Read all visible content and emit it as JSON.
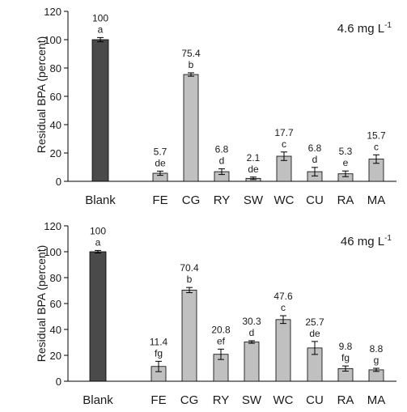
{
  "chart_data": [
    {
      "type": "bar",
      "title": "",
      "concentration_label": "4.6 mg L",
      "concentration_exponent": "-1",
      "ylabel": "Residual BPA (percent)",
      "xlabel": "",
      "ylim": [
        0,
        120
      ],
      "yticks": [
        0,
        20,
        40,
        60,
        80,
        100,
        120
      ],
      "grid": false,
      "categories": [
        "Blank",
        "FE",
        "CG",
        "RY",
        "SW",
        "WC",
        "CU",
        "RA",
        "MA"
      ],
      "values": [
        100,
        5.7,
        75.4,
        6.8,
        2.1,
        17.7,
        6.8,
        5.3,
        15.7
      ],
      "value_labels": [
        "100",
        "5.7",
        "75.4",
        "6.8",
        "2.1",
        "17.7",
        "6.8",
        "5.3",
        "15.7"
      ],
      "errors": [
        1.5,
        1.5,
        1.2,
        2.0,
        0.9,
        3.0,
        3.0,
        2.0,
        3.0
      ],
      "letters": [
        "a",
        "de",
        "b",
        "d",
        "de",
        "c",
        "d",
        "e",
        "c"
      ],
      "bar_colors": [
        "#4a4a4a",
        "#c0c0c0",
        "#c0c0c0",
        "#c0c0c0",
        "#c0c0c0",
        "#c0c0c0",
        "#c0c0c0",
        "#c0c0c0",
        "#c0c0c0"
      ]
    },
    {
      "type": "bar",
      "title": "",
      "concentration_label": "46 mg L",
      "concentration_exponent": "-1",
      "ylabel": "Residual BPA (percent)",
      "xlabel": "",
      "ylim": [
        0,
        120
      ],
      "yticks": [
        0,
        20,
        40,
        60,
        80,
        100,
        120
      ],
      "grid": false,
      "categories": [
        "Blank",
        "FE",
        "CG",
        "RY",
        "SW",
        "WC",
        "CU",
        "RA",
        "MA"
      ],
      "values": [
        100,
        11.4,
        70.4,
        20.8,
        30.3,
        47.6,
        25.7,
        9.8,
        8.8
      ],
      "value_labels": [
        "100",
        "11.4",
        "70.4",
        "20.8",
        "30.3",
        "47.6",
        "25.7",
        "9.8",
        "8.8"
      ],
      "errors": [
        1.0,
        4.0,
        2.0,
        4.0,
        1.0,
        3.0,
        5.0,
        2.0,
        1.2
      ],
      "letters": [
        "a",
        "fg",
        "b",
        "ef",
        "d",
        "c",
        "de",
        "fg",
        "g"
      ],
      "bar_colors": [
        "#4a4a4a",
        "#c0c0c0",
        "#c0c0c0",
        "#c0c0c0",
        "#c0c0c0",
        "#c0c0c0",
        "#c0c0c0",
        "#c0c0c0",
        "#c0c0c0"
      ]
    }
  ]
}
